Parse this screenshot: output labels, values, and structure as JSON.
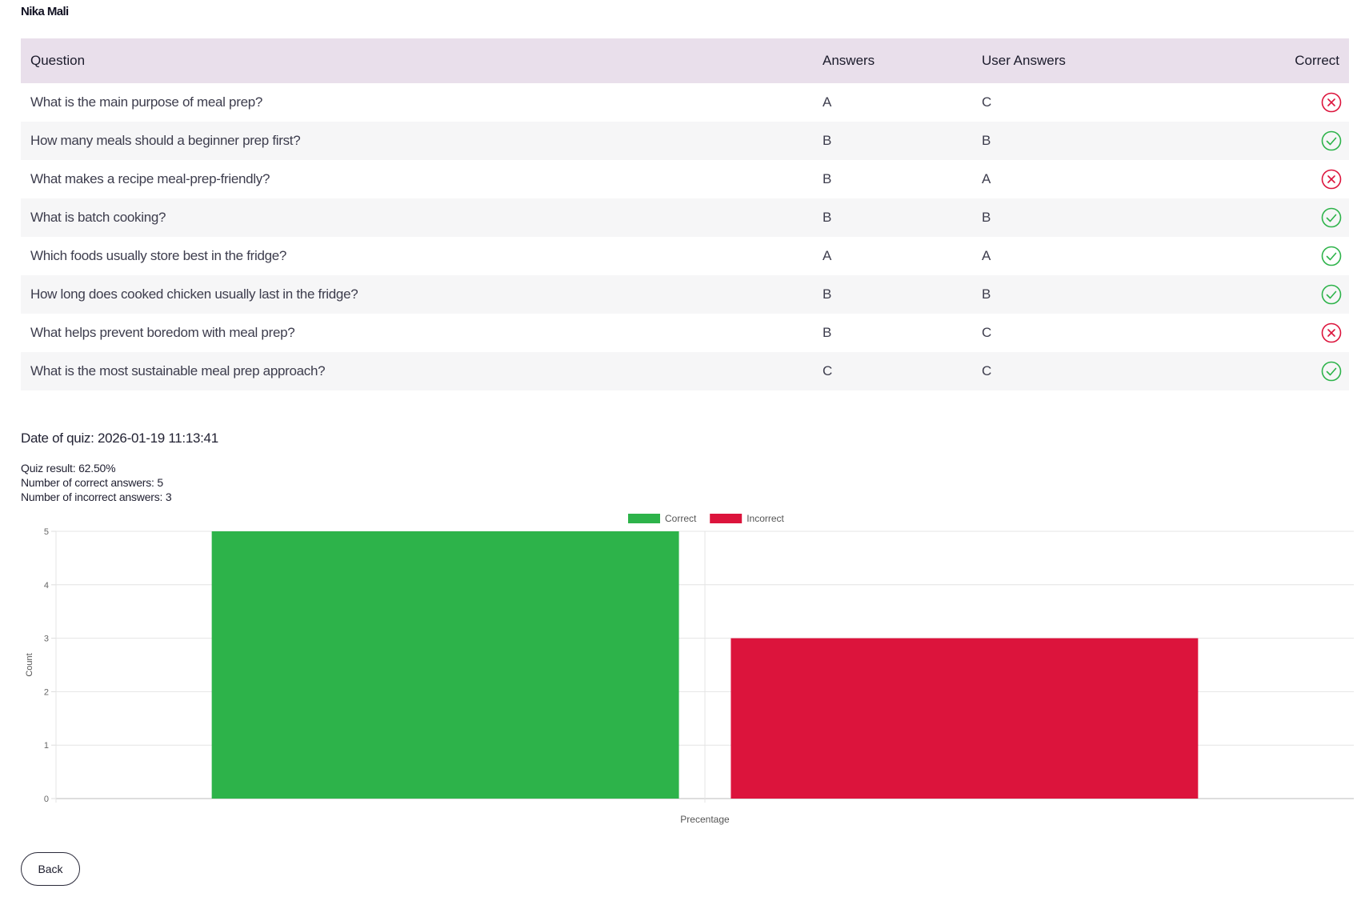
{
  "header": {
    "user_name": "Nika Mali"
  },
  "table": {
    "columns": {
      "question": "Question",
      "answers": "Answers",
      "user_answers": "User Answers",
      "correct": "Correct"
    },
    "rows": [
      {
        "question": "What is the main purpose of meal prep?",
        "answer": "A",
        "user_answer": "C",
        "correct": false
      },
      {
        "question": "How many meals should a beginner prep first?",
        "answer": "B",
        "user_answer": "B",
        "correct": true
      },
      {
        "question": "What makes a recipe meal-prep-friendly?",
        "answer": "B",
        "user_answer": "A",
        "correct": false
      },
      {
        "question": "What is batch cooking?",
        "answer": "B",
        "user_answer": "B",
        "correct": true
      },
      {
        "question": "Which foods usually store best in the fridge?",
        "answer": "A",
        "user_answer": "A",
        "correct": true
      },
      {
        "question": "How long does cooked chicken usually last in the fridge?",
        "answer": "B",
        "user_answer": "B",
        "correct": true
      },
      {
        "question": "What helps prevent boredom with meal prep?",
        "answer": "B",
        "user_answer": "C",
        "correct": false
      },
      {
        "question": "What is the most sustainable meal prep approach?",
        "answer": "C",
        "user_answer": "C",
        "correct": true
      }
    ],
    "icons": {
      "correct": "check-circle-icon",
      "incorrect": "x-circle-icon"
    },
    "colors": {
      "correct": "#2db34a",
      "incorrect": "#dc143c",
      "header_bg": "#e9dfeb"
    }
  },
  "summary": {
    "date_line": "Date of quiz: 2026-01-19 11:13:41",
    "result_line": "Quiz result: 62.50%",
    "correct_line": "Number of correct answers: 5",
    "incorrect_line": "Number of incorrect answers: 3"
  },
  "chart_data": {
    "type": "bar",
    "categories": [
      "Precentage"
    ],
    "series": [
      {
        "name": "Correct",
        "values": [
          5
        ],
        "color": "#2db34a"
      },
      {
        "name": "Incorrect",
        "values": [
          3
        ],
        "color": "#dc143c"
      }
    ],
    "xlabel": "Precentage",
    "ylabel": "Count",
    "ylim": [
      0,
      5
    ],
    "yticks": [
      0,
      1,
      2,
      3,
      4,
      5
    ],
    "grid": true,
    "legend": "top-center"
  },
  "actions": {
    "back_label": "Back"
  }
}
